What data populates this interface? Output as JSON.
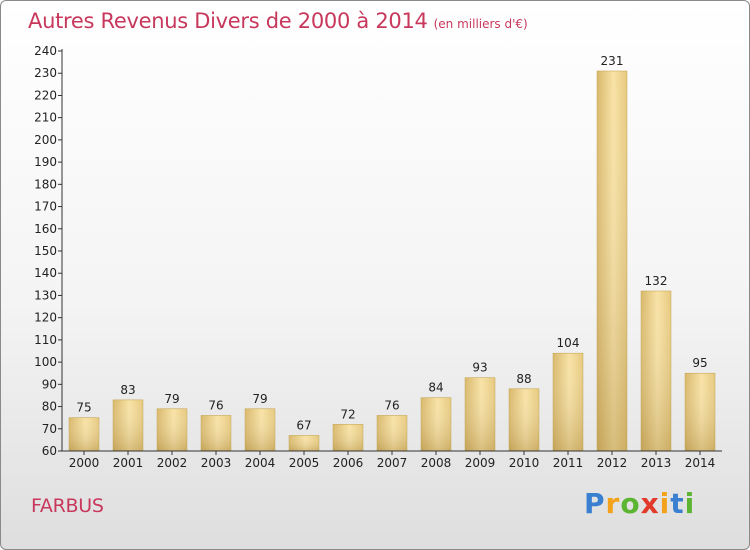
{
  "title": "Autres Revenus Divers de 2000 à 2014",
  "unit": "(en milliers d'€)",
  "commune": "FARBUS",
  "logo": {
    "letters": [
      {
        "ch": "P",
        "color": "#3a7fd0"
      },
      {
        "ch": "r",
        "color": "#f2a31b"
      },
      {
        "ch": "o",
        "color": "#5bb531"
      },
      {
        "ch": "x",
        "color": "#e23a2a"
      },
      {
        "ch": "i",
        "color": "#f2a31b"
      },
      {
        "ch": "t",
        "color": "#3a7fd0"
      },
      {
        "ch": "i",
        "color": "#5bb531"
      }
    ]
  },
  "colors": {
    "accent": "#c8385c",
    "bar_light": "#f7e0a0",
    "bar_dark": "#cfae5e"
  },
  "chart_data": {
    "type": "bar",
    "categories": [
      "2000",
      "2001",
      "2002",
      "2003",
      "2004",
      "2005",
      "2006",
      "2007",
      "2008",
      "2009",
      "2010",
      "2011",
      "2012",
      "2013",
      "2014"
    ],
    "values": [
      75,
      83,
      79,
      76,
      79,
      67,
      72,
      76,
      84,
      93,
      88,
      104,
      231,
      132,
      95
    ],
    "ylim": [
      60,
      240
    ],
    "yticks": [
      60,
      70,
      80,
      90,
      100,
      110,
      120,
      130,
      140,
      150,
      160,
      170,
      180,
      190,
      200,
      210,
      220,
      230,
      240
    ],
    "grid": false,
    "data_labels": true
  }
}
